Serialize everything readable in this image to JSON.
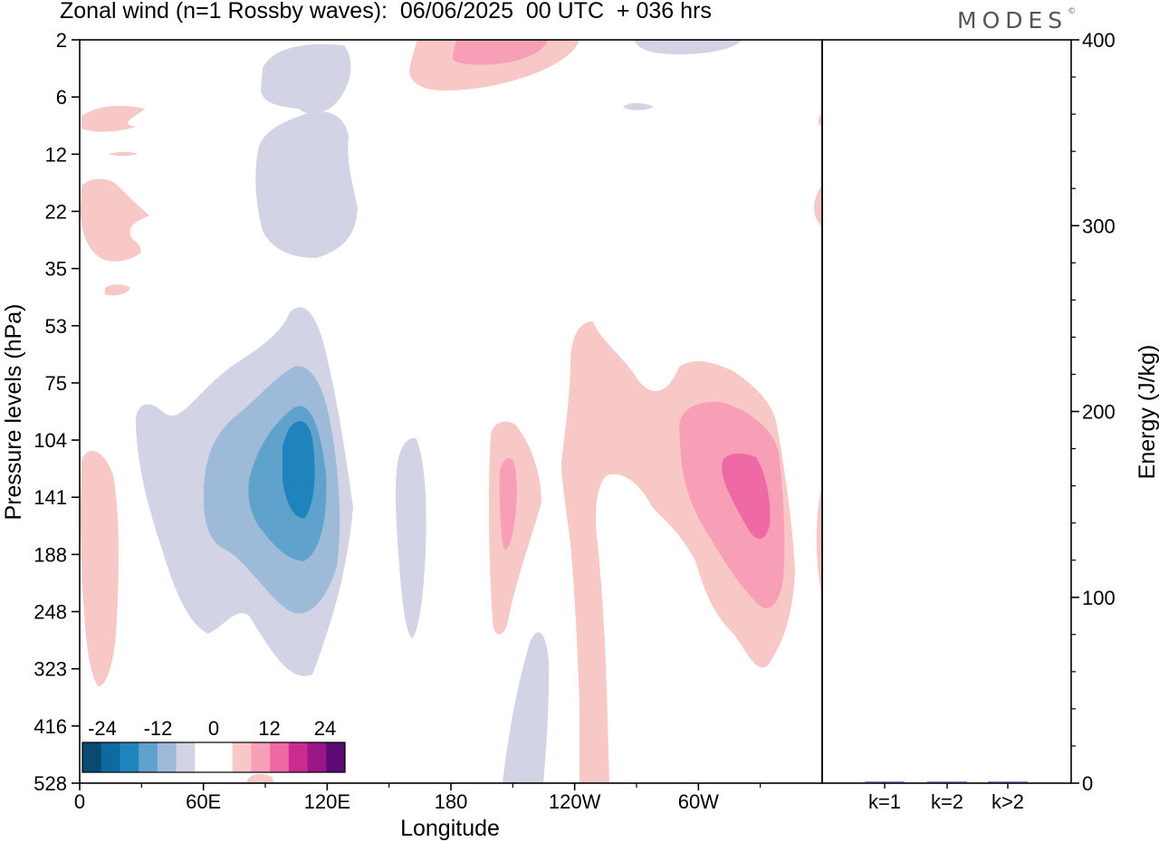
{
  "header": {
    "title": "Zonal wind (n=1 Rossby waves):  06/06/2025  00 UTC  + 036 hrs",
    "brand": "MODES",
    "brand_mark": "©"
  },
  "colors": {
    "neg_strong": "#1f83bd",
    "neg_mid": "#5fa2cc",
    "neg_light": "#9dbad9",
    "neg_faint": "#d2d4e6",
    "pos_faint": "#f8c8c6",
    "pos_light": "#f69fb7",
    "pos_mid": "#ef6aa4",
    "axis": "#000000",
    "energy_bar": "#20206a"
  },
  "chart_data": [
    {
      "type": "heatmap",
      "title": "Zonal wind (n=1 Rossby waves):  06/06/2025  00 UTC  + 036 hrs",
      "xlabel": "Longitude",
      "ylabel": "Pressure levels (hPa)",
      "x_ticks": [
        "0",
        "60E",
        "120E",
        "180",
        "120W",
        "60W"
      ],
      "x_tick_deg": [
        0,
        60,
        120,
        180,
        240,
        300
      ],
      "xlim_deg": [
        0,
        360
      ],
      "y_ticks": [
        "2",
        "6",
        "12",
        "22",
        "35",
        "53",
        "75",
        "104",
        "141",
        "188",
        "248",
        "323",
        "416",
        "528"
      ],
      "colorbar": {
        "labels": [
          "-24",
          "-12",
          "0",
          "12",
          "24"
        ],
        "colors": [
          "#0a4a6e",
          "#0d6aa1",
          "#1f83bd",
          "#5fa2cc",
          "#9dbad9",
          "#d2d4e6",
          "#ffffff",
          "#ffffff",
          "#f8c8c6",
          "#f69fb7",
          "#ef6aa4",
          "#ca2b8e",
          "#9b1687",
          "#5c0a74"
        ]
      },
      "features": [
        {
          "sign": "negative",
          "lon_deg": 107,
          "level_hPa": 141,
          "peak": "-18"
        },
        {
          "sign": "positive",
          "lon_deg": 333,
          "level_hPa": 141,
          "peak": "12"
        },
        {
          "sign": "positive",
          "lon_deg": 210,
          "level_hPa": 141,
          "peak": "6"
        }
      ]
    },
    {
      "type": "bar",
      "ylabel": "Energy (J/kg)",
      "categories": [
        "k=1",
        "k=2",
        "k>2"
      ],
      "values": [
        0.6,
        0.2,
        0.4
      ],
      "ylim": [
        0,
        400
      ],
      "y_ticks": [
        "0",
        "100",
        "200",
        "300",
        "400"
      ]
    }
  ]
}
